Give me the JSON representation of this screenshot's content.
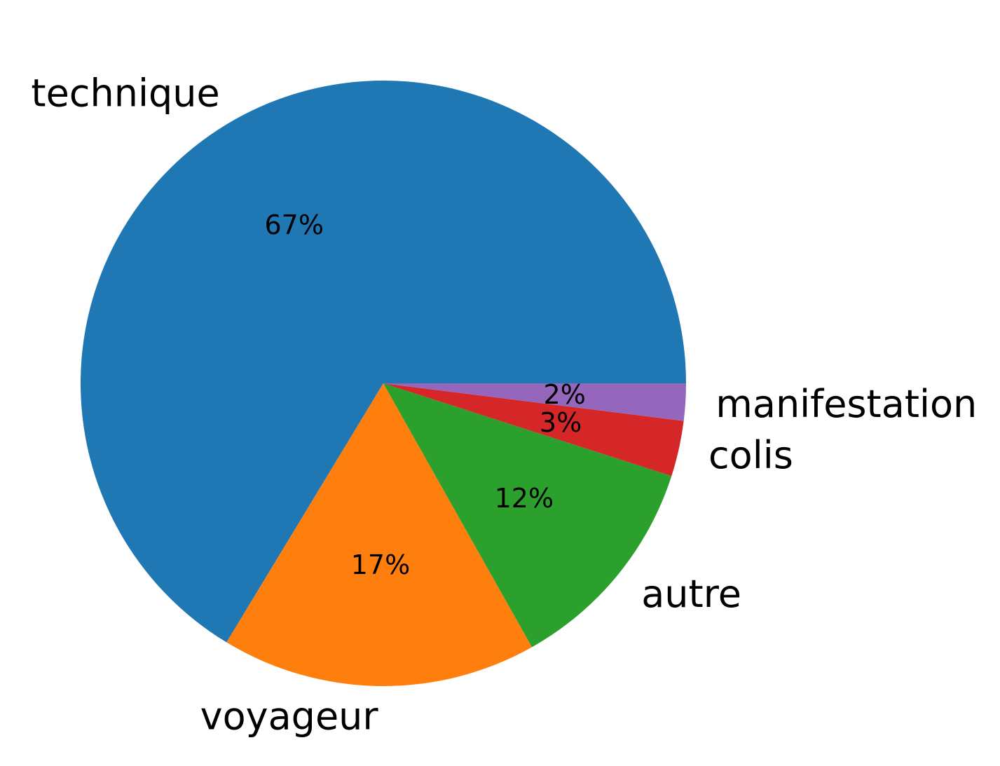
{
  "chart_data": {
    "type": "pie",
    "title": "",
    "categories": [
      "technique",
      "voyageur",
      "autre",
      "colis",
      "manifestation"
    ],
    "values": [
      67,
      17,
      12,
      3,
      2
    ],
    "percent_labels": [
      "67%",
      "17%",
      "12%",
      "3%",
      "2%"
    ],
    "colors": [
      "#1f77b4",
      "#ff7f0e",
      "#2ca02c",
      "#d62728",
      "#9467bd"
    ],
    "start_angle_deg": 0,
    "direction": "counterclockwise",
    "legend": "none"
  }
}
